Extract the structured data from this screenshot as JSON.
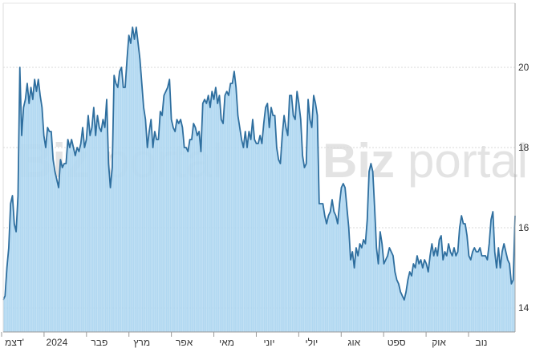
{
  "chart_data": {
    "type": "area",
    "title": "",
    "xlabel": "",
    "ylabel": "",
    "ylim": [
      13.4,
      21.6
    ],
    "y_ticks": [
      14,
      16,
      18,
      20
    ],
    "y_axis_position": "right",
    "grid": "horizontal dotted",
    "x_tick_labels": [
      "דצמ'",
      "2024",
      "פבר",
      "מרץ",
      "אפר",
      "מאי",
      "יוני",
      "יולי",
      "אוג",
      "ספט",
      "אוק",
      "נוב"
    ],
    "watermark": [
      "Biz",
      "portal"
    ],
    "colors": {
      "line": "#2f6f9f",
      "fill": "#a8d4ef",
      "grid": "#d8d8d8",
      "axis": "#aaaaaa"
    },
    "series": [
      {
        "values": [
          14.2,
          14.3,
          15.0,
          15.5,
          16.6,
          16.8,
          16.1,
          15.9,
          16.8,
          20.0,
          18.3,
          19.0,
          19.2,
          19.6,
          19.1,
          19.5,
          19.2,
          19.7,
          19.4,
          19.7,
          19.3,
          19.0,
          18.3,
          18.0,
          18.5,
          18.4,
          18.4,
          17.7,
          17.4,
          17.2,
          17.0,
          17.7,
          17.5,
          17.6,
          17.6,
          18.2,
          18.0,
          18.2,
          18.0,
          17.8,
          18.0,
          17.9,
          18.1,
          18.5,
          18.0,
          18.2,
          18.8,
          18.3,
          18.5,
          19.0,
          18.3,
          18.8,
          18.5,
          18.4,
          18.7,
          18.5,
          19.2,
          17.6,
          17.0,
          17.5,
          19.8,
          19.6,
          19.5,
          19.9,
          20.0,
          19.5,
          19.5,
          20.2,
          20.8,
          20.6,
          21.0,
          20.7,
          21.0,
          20.6,
          20.2,
          19.6,
          19.0,
          18.7,
          18.0,
          18.4,
          18.7,
          18.0,
          18.4,
          18.2,
          18.2,
          18.9,
          18.8,
          19.3,
          19.4,
          19.5,
          19.7,
          18.7,
          18.5,
          18.4,
          18.7,
          18.6,
          18.7,
          18.5,
          18.0,
          18.0,
          17.9,
          18.2,
          18.2,
          18.6,
          18.5,
          18.3,
          18.4,
          17.9,
          19.1,
          19.2,
          19.1,
          19.3,
          19.0,
          19.4,
          19.2,
          19.5,
          19.1,
          19.3,
          18.7,
          18.6,
          19.3,
          19.4,
          19.3,
          19.6,
          19.6,
          19.9,
          19.5,
          18.8,
          18.5,
          18.2,
          18.0,
          18.4,
          18.0,
          18.4,
          18.2,
          18.7,
          18.2,
          18.1,
          18.1,
          18.3,
          18.1,
          18.6,
          19.0,
          19.1,
          18.5,
          19.0,
          18.8,
          18.8,
          18.0,
          17.7,
          17.6,
          18.3,
          18.8,
          18.5,
          18.3,
          19.3,
          19.3,
          18.8,
          18.7,
          19.4,
          19.1,
          18.7,
          17.8,
          17.5,
          17.6,
          19.2,
          18.7,
          18.5,
          19.3,
          19.1,
          18.8,
          16.6,
          16.6,
          16.6,
          16.3,
          16.1,
          16.3,
          16.4,
          16.7,
          16.4,
          16.3,
          16.1,
          16.6,
          17.0,
          17.1,
          17.0,
          16.5,
          16.0,
          15.2,
          15.4,
          15.0,
          15.5,
          15.3,
          15.6,
          15.5,
          15.7,
          15.6,
          16.2,
          17.4,
          17.6,
          17.4,
          16.5,
          15.5,
          15.1,
          15.9,
          15.6,
          15.1,
          15.2,
          15.3,
          15.5,
          15.4,
          15.3,
          14.9,
          14.7,
          14.6,
          14.4,
          14.3,
          14.2,
          14.4,
          14.7,
          14.9,
          14.8,
          15.1,
          15.0,
          15.3,
          15.1,
          15.2,
          15.0,
          15.2,
          15.1,
          14.9,
          15.3,
          15.6,
          15.3,
          15.5,
          15.3,
          15.7,
          15.8,
          15.2,
          15.4,
          15.3,
          15.6,
          15.4,
          15.3,
          15.5,
          15.3,
          15.4,
          16.0,
          16.3,
          16.1,
          16.1,
          15.8,
          15.3,
          15.2,
          15.4,
          15.5,
          15.4,
          15.4,
          15.5,
          15.3,
          15.3,
          15.3,
          15.2,
          15.6,
          16.2,
          16.4,
          15.4,
          15.0,
          15.5,
          15.0,
          15.4,
          15.6,
          15.4,
          15.2,
          15.1,
          14.6,
          14.7,
          16.3
        ]
      }
    ]
  }
}
